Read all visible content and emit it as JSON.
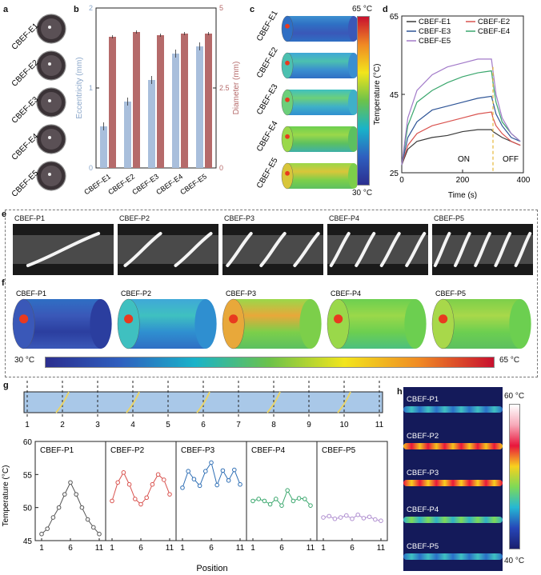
{
  "panels": {
    "a": {
      "letter": "a",
      "labels": [
        "CBEF-E1",
        "CBEF-E2",
        "CBEF-E3",
        "CBEF-E4",
        "CBEF-E5"
      ]
    },
    "b": {
      "letter": "b",
      "ylabel_left": "Eccentricity (mm)",
      "ylabel_right": "Diameter (mm)",
      "left_ticks": [
        "0",
        "1",
        "2"
      ],
      "right_ticks": [
        "0",
        "2.5",
        "5"
      ]
    },
    "c": {
      "letter": "c",
      "labels": [
        "CBEF-E1",
        "CBEF-E2",
        "CBEF-E3",
        "CBEF-E4",
        "CBEF-E5"
      ],
      "scale_max": "65 °C",
      "scale_min": "30 °C"
    },
    "d": {
      "letter": "d",
      "ylabel": "Temperature (°C)",
      "xlabel": "Time (s)",
      "on_label": "ON",
      "off_label": "OFF"
    },
    "e": {
      "letter": "e",
      "labels": [
        "CBEF-P1",
        "CBEF-P2",
        "CBEF-P3",
        "CBEF-P4",
        "CBEF-P5"
      ]
    },
    "f": {
      "letter": "f",
      "labels": [
        "CBEF-P1",
        "CBEF-P2",
        "CBEF-P3",
        "CBEF-P4",
        "CBEF-P5"
      ],
      "scale_min": "30 °C",
      "scale_max": "65 °C"
    },
    "g": {
      "letter": "g",
      "positions": [
        "1",
        "2",
        "3",
        "4",
        "5",
        "6",
        "7",
        "8",
        "9",
        "10",
        "11"
      ],
      "ylabel": "Temperature (°C)",
      "xlabel": "Position",
      "yticks": [
        "45",
        "50",
        "55",
        "60"
      ],
      "xticks": [
        "1",
        "6",
        "11"
      ]
    },
    "h": {
      "letter": "h",
      "labels": [
        "CBEF-P1",
        "CBEF-P2",
        "CBEF-P3",
        "CBEF-P4",
        "CBEF-P5"
      ],
      "scale_max": "60 °C",
      "scale_min": "40 °C"
    }
  },
  "colors": {
    "bar_ecc": "#a9bfdc",
    "bar_dia": "#b56a6a",
    "e1": "#3a3a3a",
    "e2": "#d9534f",
    "e3": "#2f5597",
    "e4": "#3aa76d",
    "e5": "#a27ac9",
    "p1": "#555555",
    "p2": "#d9534f",
    "p3": "#2f6fb5",
    "p4": "#3aa76d",
    "p5": "#b08fd0"
  },
  "chart_data": [
    {
      "type": "bar",
      "id": "b",
      "categories": [
        "CBEF-E1",
        "CBEF-E2",
        "CBEF-E3",
        "CBEF-E4",
        "CBEF-E5"
      ],
      "series": [
        {
          "name": "Eccentricity (mm)",
          "axis": "left",
          "values": [
            0.52,
            0.83,
            1.1,
            1.43,
            1.52
          ]
        },
        {
          "name": "Diameter (mm)",
          "axis": "right",
          "values": [
            4.1,
            4.25,
            4.15,
            4.2,
            4.2
          ]
        }
      ],
      "ylim_left": [
        0,
        2
      ],
      "ylim_right": [
        0,
        5
      ]
    },
    {
      "type": "line",
      "id": "d",
      "xlabel": "Time (s)",
      "ylabel": "Temperature (°C)",
      "xlim": [
        0,
        400
      ],
      "ylim": [
        25,
        65
      ],
      "xticks": [
        0,
        200,
        400
      ],
      "yticks": [
        25,
        45,
        65
      ],
      "x": [
        0,
        20,
        50,
        100,
        150,
        200,
        250,
        295,
        300,
        310,
        330,
        360,
        390
      ],
      "series": [
        {
          "name": "CBEF-E1",
          "values": [
            27,
            31,
            33,
            34,
            34.5,
            35.5,
            36,
            36,
            35.5,
            35,
            34,
            33,
            32
          ]
        },
        {
          "name": "CBEF-E2",
          "values": [
            27,
            32,
            35,
            37,
            38,
            39,
            40,
            40.5,
            39,
            37,
            35,
            33,
            32
          ]
        },
        {
          "name": "CBEF-E3",
          "values": [
            27,
            34,
            38,
            41,
            42,
            43,
            44,
            44.5,
            43,
            40,
            37,
            34,
            33
          ]
        },
        {
          "name": "CBEF-E4",
          "values": [
            27,
            37,
            43,
            46,
            48,
            49.5,
            50.5,
            51,
            48,
            43,
            38,
            35,
            33
          ]
        },
        {
          "name": "CBEF-E5",
          "values": [
            27,
            39,
            46,
            50,
            52,
            53,
            54,
            54,
            51,
            45,
            39,
            35,
            33
          ]
        }
      ]
    },
    {
      "type": "line",
      "id": "g",
      "ylim": [
        45,
        60
      ],
      "xlim": [
        1,
        11
      ],
      "series": [
        {
          "name": "CBEF-P1",
          "x": [
            1,
            2,
            3,
            4,
            5,
            6,
            7,
            8,
            9,
            10,
            11
          ],
          "values": [
            46,
            46.8,
            48.5,
            50,
            52,
            53.8,
            52,
            50,
            48.2,
            47,
            46
          ]
        },
        {
          "name": "CBEF-P2",
          "x": [
            1,
            2,
            3,
            4,
            5,
            6,
            7,
            8,
            9,
            10,
            11
          ],
          "values": [
            51,
            53.8,
            55.3,
            53.5,
            51.3,
            50.5,
            51.5,
            53.5,
            55,
            54.2,
            52
          ]
        },
        {
          "name": "CBEF-P3",
          "x": [
            1,
            2,
            3,
            4,
            5,
            6,
            7,
            8,
            9,
            10,
            11
          ],
          "values": [
            53,
            55.5,
            54.3,
            53.3,
            55.5,
            56.8,
            53.4,
            55.6,
            54.1,
            55.7,
            53.5
          ]
        },
        {
          "name": "CBEF-P4",
          "x": [
            1,
            2,
            3,
            4,
            5,
            6,
            7,
            8,
            9,
            10,
            11
          ],
          "values": [
            51,
            51.3,
            51,
            50.5,
            51.3,
            50.3,
            52.6,
            51,
            51.4,
            51.3,
            50.3
          ]
        },
        {
          "name": "CBEF-P5",
          "x": [
            1,
            2,
            3,
            4,
            5,
            6,
            7,
            8,
            9,
            10,
            11
          ],
          "values": [
            48.5,
            48.7,
            48.3,
            48.5,
            48.8,
            48.3,
            48.9,
            48.4,
            48.6,
            48.2,
            48
          ]
        }
      ]
    }
  ]
}
